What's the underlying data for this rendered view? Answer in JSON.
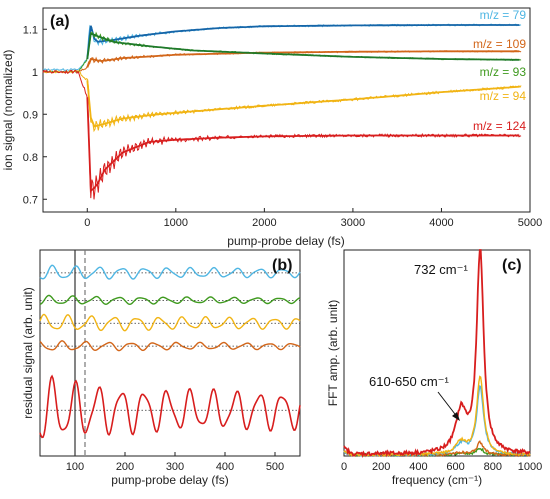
{
  "colors": {
    "m79": "#4fb6e3",
    "m109": "#d2661a",
    "m93": "#3f9a1f",
    "m94": "#f1b414",
    "m124": "#d81e1e",
    "fit": "#1565a8",
    "fit93": "#1f7a2a"
  },
  "chart_data": [
    {
      "id": "a",
      "type": "line",
      "panel_label": "(a)",
      "xlabel": "pump-probe delay (fs)",
      "ylabel": "ion signal (normalized)",
      "xlim": [
        -500,
        5000
      ],
      "ylim": [
        0.67,
        1.15
      ],
      "xticks": [
        0,
        1000,
        2000,
        3000,
        4000,
        5000
      ],
      "yticks": [
        0.7,
        0.8,
        0.9,
        1.0,
        1.1
      ],
      "ytick_labels": [
        "0.7",
        "0.8",
        "0.9",
        "1",
        "1.1"
      ],
      "grid": false,
      "series": [
        {
          "name": "m/z = 79",
          "key": "m79",
          "points": [
            [
              -500,
              1.005
            ],
            [
              -100,
              1.005
            ],
            [
              0,
              1.03
            ],
            [
              30,
              1.12
            ],
            [
              60,
              1.085
            ],
            [
              100,
              1.07
            ],
            [
              300,
              1.075
            ],
            [
              600,
              1.085
            ],
            [
              1000,
              1.095
            ],
            [
              1500,
              1.103
            ],
            [
              2000,
              1.107
            ],
            [
              3000,
              1.109
            ],
            [
              4000,
              1.11
            ],
            [
              4900,
              1.11
            ]
          ]
        },
        {
          "name": "m/z = 109",
          "key": "m109",
          "points": [
            [
              -500,
              1.0
            ],
            [
              -100,
              1.0
            ],
            [
              0,
              1.01
            ],
            [
              40,
              1.03
            ],
            [
              150,
              1.025
            ],
            [
              400,
              1.032
            ],
            [
              1000,
              1.04
            ],
            [
              2000,
              1.045
            ],
            [
              3000,
              1.047
            ],
            [
              4000,
              1.048
            ],
            [
              4900,
              1.048
            ]
          ]
        },
        {
          "name": "m/z = 93",
          "key": "m93",
          "points": [
            [
              -500,
              1.0
            ],
            [
              -100,
              1.0
            ],
            [
              0,
              1.03
            ],
            [
              40,
              1.09
            ],
            [
              100,
              1.085
            ],
            [
              300,
              1.07
            ],
            [
              700,
              1.06
            ],
            [
              1200,
              1.05
            ],
            [
              2000,
              1.043
            ],
            [
              3000,
              1.035
            ],
            [
              4000,
              1.03
            ],
            [
              4900,
              1.028
            ]
          ]
        },
        {
          "name": "m/z = 94",
          "key": "m94",
          "points": [
            [
              -500,
              1.0
            ],
            [
              -100,
              1.0
            ],
            [
              0,
              0.98
            ],
            [
              50,
              0.87
            ],
            [
              150,
              0.875
            ],
            [
              400,
              0.89
            ],
            [
              800,
              0.9
            ],
            [
              1500,
              0.912
            ],
            [
              2000,
              0.92
            ],
            [
              3000,
              0.935
            ],
            [
              4000,
              0.952
            ],
            [
              4900,
              0.965
            ]
          ]
        },
        {
          "name": "m/z = 124",
          "key": "m124",
          "points": [
            [
              -500,
              1.0
            ],
            [
              -100,
              1.0
            ],
            [
              0,
              0.94
            ],
            [
              40,
              0.72
            ],
            [
              100,
              0.73
            ],
            [
              200,
              0.77
            ],
            [
              400,
              0.81
            ],
            [
              700,
              0.835
            ],
            [
              1000,
              0.84
            ],
            [
              1500,
              0.845
            ],
            [
              2000,
              0.848
            ],
            [
              3000,
              0.85
            ],
            [
              4000,
              0.85
            ],
            [
              4900,
              0.85
            ]
          ]
        }
      ]
    },
    {
      "id": "b",
      "type": "line",
      "panel_label": "(b)",
      "xlabel": "pump-probe delay (fs)",
      "ylabel": "residual signal (arb. unit)",
      "xlim": [
        30,
        550
      ],
      "xticks": [
        100,
        200,
        300,
        400,
        500
      ],
      "vlines": [
        100,
        120
      ],
      "grid": false,
      "series": [
        {
          "key": "m79",
          "offset": 4.2,
          "amp": 0.28,
          "phase": 0.3,
          "decay": 0.002
        },
        {
          "key": "m93",
          "offset": 3.0,
          "amp": 0.18,
          "phase": 1.2,
          "decay": 0.002
        },
        {
          "key": "m94",
          "offset": 2.0,
          "amp": 0.32,
          "phase": 2.5,
          "decay": 0.0015
        },
        {
          "key": "m109",
          "offset": 1.0,
          "amp": 0.2,
          "phase": 4.0,
          "decay": 0.002
        },
        {
          "key": "m124",
          "offset": -1.8,
          "amp": 1.3,
          "phase": 0.4,
          "decay": 0.004
        }
      ]
    },
    {
      "id": "c",
      "type": "line",
      "panel_label": "(c)",
      "xlabel": "frequency (cm⁻¹)",
      "ylabel": "FFT amp. (arb. unit)",
      "xlim": [
        0,
        1000
      ],
      "ylim": [
        0,
        1.0
      ],
      "xticks": [
        0,
        200,
        400,
        600,
        800,
        1000
      ],
      "grid": false,
      "annotations": [
        {
          "text": "732 cm⁻¹",
          "x": 732,
          "y": 0.95
        },
        {
          "text": "610-650 cm⁻¹",
          "x": 640,
          "y": 0.22
        }
      ],
      "series": [
        {
          "key": "m124",
          "peak": 1.0,
          "shoulder": 0.2
        },
        {
          "key": "m94",
          "peak": 0.38,
          "shoulder": 0.06
        },
        {
          "key": "m79",
          "peak": 0.33,
          "shoulder": 0.05
        },
        {
          "key": "m109",
          "peak": 0.06,
          "shoulder": 0.01
        },
        {
          "key": "m93",
          "peak": 0.03,
          "shoulder": 0.01
        }
      ]
    }
  ]
}
